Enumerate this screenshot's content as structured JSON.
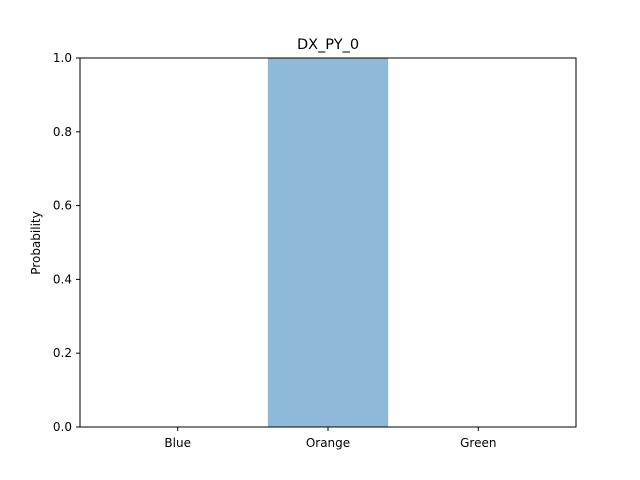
{
  "chart_data": {
    "type": "bar",
    "title": "DX_PY_0",
    "xlabel": "",
    "ylabel": "Probability",
    "categories": [
      "Blue",
      "Orange",
      "Green"
    ],
    "values": [
      0.0,
      1.0,
      0.0
    ],
    "ylim": [
      0,
      1.0
    ],
    "yticks": [
      "0.0",
      "0.2",
      "0.4",
      "0.6",
      "0.8",
      "1.0"
    ],
    "bar_color": "#8fb9d9",
    "grid": false
  }
}
